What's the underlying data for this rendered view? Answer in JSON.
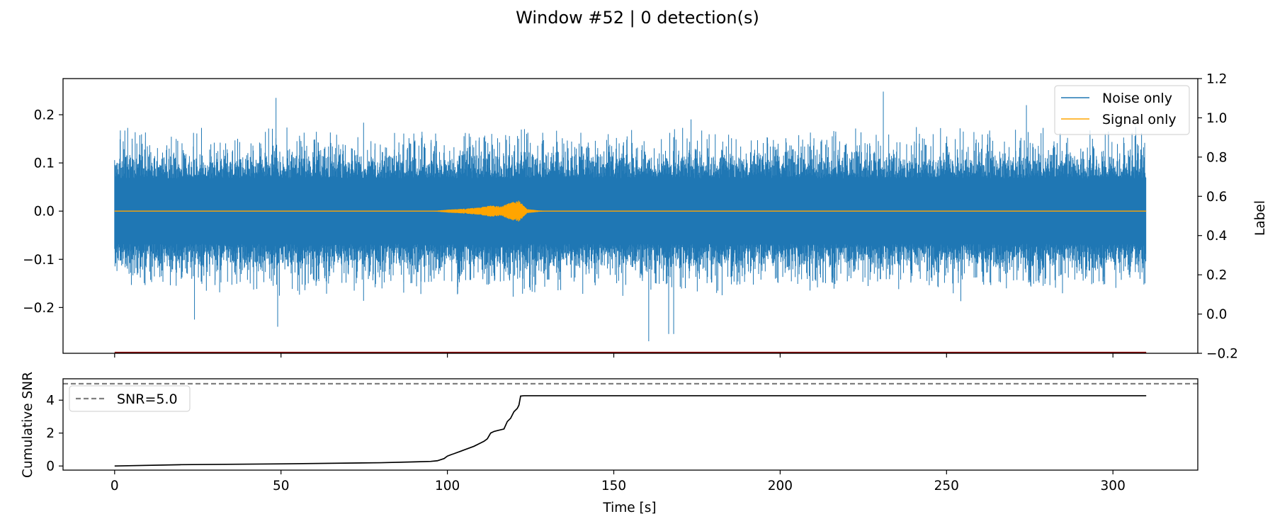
{
  "figure": {
    "suptitle": "Window #52 | 0 detection(s)"
  },
  "colors": {
    "noise": "#1f77b4",
    "signal": "#ffa500",
    "label": "#8b0000",
    "snr": "#000000",
    "threshold": "#808080"
  },
  "chart_data": [
    {
      "type": "line",
      "panel": "waveform",
      "title": "Window #52 | 0 detection(s)",
      "xlim": [
        -15.5,
        325.5
      ],
      "ylim": [
        -0.295,
        0.275
      ],
      "y_ticks": [
        -0.2,
        -0.1,
        0.0,
        0.1,
        0.2
      ],
      "y_tick_labels": [
        "−0.2",
        "−0.1",
        "0.0",
        "0.1",
        "0.2"
      ],
      "x_ticks": [
        0,
        50,
        100,
        150,
        200,
        250,
        300
      ],
      "xlabel": "",
      "ylabel": "",
      "series": [
        {
          "name": "Noise only",
          "color": "#1f77b4",
          "x_range": [
            0,
            310
          ],
          "typical_amplitude": 0.11,
          "peak_amplitude": 0.25,
          "notable_peaks": [
            {
              "x": 48.5,
              "y": 0.235
            },
            {
              "x": 49.0,
              "y": -0.24
            },
            {
              "x": 160.5,
              "y": -0.27
            },
            {
              "x": 166.5,
              "y": -0.255
            },
            {
              "x": 168.0,
              "y": -0.255
            },
            {
              "x": 231.0,
              "y": 0.248
            },
            {
              "x": 24.0,
              "y": -0.225
            },
            {
              "x": 274.0,
              "y": 0.22
            }
          ]
        },
        {
          "name": "Signal only",
          "color": "#ffa500",
          "x_range": [
            0,
            310
          ],
          "burst": [
            {
              "x": 95,
              "amplitude": 0.0
            },
            {
              "x": 100,
              "amplitude": 0.003
            },
            {
              "x": 105,
              "amplitude": 0.005
            },
            {
              "x": 110,
              "amplitude": 0.008
            },
            {
              "x": 113,
              "amplitude": 0.012
            },
            {
              "x": 116,
              "amplitude": 0.01
            },
            {
              "x": 119,
              "amplitude": 0.018
            },
            {
              "x": 121.5,
              "amplitude": 0.022
            },
            {
              "x": 124,
              "amplitude": 0.004
            },
            {
              "x": 130,
              "amplitude": 0.0
            }
          ]
        }
      ],
      "secondary_axis": {
        "ylabel": "Label",
        "ylim": [
          -0.2,
          1.2
        ],
        "ticks": [
          -0.2,
          0.0,
          0.2,
          0.4,
          0.6,
          0.8,
          1.0,
          1.2
        ],
        "tick_labels": [
          "−0.2",
          "0.0",
          "0.2",
          "0.4",
          "0.6",
          "0.8",
          "1.0",
          "1.2"
        ],
        "series": [
          {
            "color": "#8b0000",
            "x": [
              0,
              310
            ],
            "y": [
              -0.2,
              -0.2
            ]
          }
        ]
      },
      "legend": {
        "placement": "upper right",
        "entries": [
          "Noise only",
          "Signal only"
        ]
      },
      "grid": false
    },
    {
      "type": "line",
      "panel": "cumulative_snr",
      "xlim": [
        -15.5,
        325.5
      ],
      "ylim": [
        -0.25,
        5.3
      ],
      "xlabel": "Time [s]",
      "ylabel": "Cumulative SNR",
      "x_ticks": [
        0,
        50,
        100,
        150,
        200,
        250,
        300
      ],
      "x_tick_labels": [
        "0",
        "50",
        "100",
        "150",
        "200",
        "250",
        "300"
      ],
      "y_ticks": [
        0,
        2,
        4
      ],
      "y_tick_labels": [
        "0",
        "2",
        "4"
      ],
      "series": [
        {
          "name": "",
          "color": "#000000",
          "x": [
            0,
            20,
            50,
            80,
            90,
            95,
            97,
            99,
            100,
            101,
            102,
            104,
            106,
            108,
            110,
            111,
            112,
            113,
            114,
            115,
            116,
            117,
            118,
            119,
            120,
            121,
            121.5,
            122,
            123,
            150,
            200,
            250,
            310
          ],
          "y": [
            0.0,
            0.08,
            0.13,
            0.2,
            0.25,
            0.28,
            0.32,
            0.45,
            0.6,
            0.68,
            0.75,
            0.9,
            1.05,
            1.2,
            1.4,
            1.5,
            1.65,
            2.0,
            2.1,
            2.15,
            2.2,
            2.25,
            2.7,
            2.9,
            3.3,
            3.5,
            3.7,
            4.25,
            4.27,
            4.27,
            4.27,
            4.27,
            4.27
          ]
        }
      ],
      "threshold": {
        "name": "SNR=5.0",
        "value": 5.0,
        "color": "#808080",
        "style": "dashed"
      },
      "legend": {
        "placement": "upper left",
        "entries": [
          "SNR=5.0"
        ]
      },
      "grid": false
    }
  ]
}
